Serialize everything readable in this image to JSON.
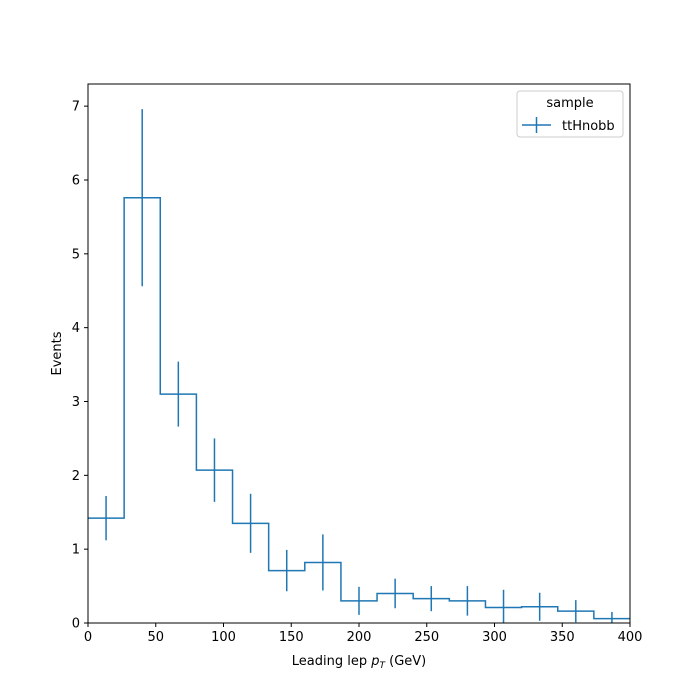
{
  "chart_data": {
    "type": "histogram",
    "xlabel_prefix": "Leading lep ",
    "xlabel_symbol": "p",
    "xlabel_subscript": "T",
    "xlabel_suffix": " (GeV)",
    "ylabel": "Events",
    "xlim": [
      0,
      400
    ],
    "ylim": [
      0,
      7.3
    ],
    "xticks": [
      0,
      50,
      100,
      150,
      200,
      250,
      300,
      350,
      400
    ],
    "yticks": [
      0,
      1,
      2,
      3,
      4,
      5,
      6,
      7
    ],
    "grid": false,
    "legend": {
      "title": "sample",
      "position": "top-right"
    },
    "series": [
      {
        "name": "ttHnobb",
        "color": "#1f77b4",
        "bin_edges": [
          0,
          26.67,
          53.33,
          80,
          106.67,
          133.33,
          160,
          186.67,
          213.33,
          240,
          266.67,
          293.33,
          320,
          346.67,
          373.33,
          400
        ],
        "values": [
          1.42,
          5.76,
          3.1,
          2.07,
          1.35,
          0.71,
          0.82,
          0.3,
          0.4,
          0.33,
          0.3,
          0.21,
          0.22,
          0.16,
          0.06
        ],
        "errors": [
          0.3,
          1.2,
          0.44,
          0.43,
          0.4,
          0.28,
          0.38,
          0.19,
          0.2,
          0.17,
          0.2,
          0.24,
          0.19,
          0.15,
          0.09
        ]
      }
    ]
  }
}
